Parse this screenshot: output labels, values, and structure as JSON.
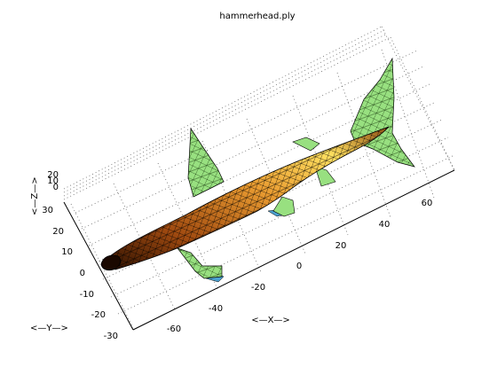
{
  "window": {
    "title": "hammerhead.ply"
  },
  "axes": {
    "x": {
      "label": "<—X—>",
      "ticks": [
        "-60",
        "-40",
        "-20",
        "0",
        "20",
        "40",
        "60"
      ]
    },
    "y": {
      "label": "<—Y—>",
      "ticks": [
        "30",
        "20",
        "10",
        "0",
        "-10",
        "-20",
        "-30"
      ]
    },
    "z": {
      "label": "<—Z—>",
      "ticks": [
        "0",
        "10",
        "20"
      ]
    },
    "grid": "dotted"
  },
  "surface": {
    "name": "hammerhead",
    "colormap": [
      "#2a0f00",
      "#c05a10",
      "#f0b040",
      "#fff060"
    ],
    "fin_color": "#98e080",
    "edge_color": "#000000"
  },
  "colors": {
    "background": "#ffffff",
    "grid": "#6a6a6a",
    "axis": "#000000",
    "shadow": "#4aa0d0"
  }
}
